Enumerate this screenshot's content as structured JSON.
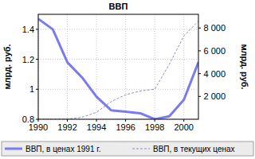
{
  "chart_data": {
    "type": "line",
    "title": "ВВП",
    "y_label": "млрд. руб.",
    "y2_label": "млрд. руб.",
    "x": [
      1990,
      1991,
      1992,
      1993,
      1994,
      1995,
      1996,
      1997,
      1998,
      1999,
      2000,
      2001
    ],
    "xlim": [
      1990,
      2001
    ],
    "xticks": [
      1990,
      1992,
      1994,
      1996,
      1998,
      2000
    ],
    "ylim": [
      0.8,
      1.5
    ],
    "yticks": [
      0.8,
      1,
      1.2,
      1.4
    ],
    "y2lim": [
      0,
      9200
    ],
    "y2ticks": [
      {
        "value": 2000,
        "label": "2 000"
      },
      {
        "value": 4000,
        "label": "4 000"
      },
      {
        "value": 6000,
        "label": "6 000"
      },
      {
        "value": 8000,
        "label": "8 000"
      }
    ],
    "grid": true,
    "legend": "bottom",
    "series": [
      {
        "name": "ВВП, в ценах 1991 г.",
        "color": "#7b7bf0",
        "line_style": "solid",
        "values": [
          1.47,
          1.4,
          1.18,
          1.08,
          0.95,
          0.86,
          0.85,
          0.84,
          0.8,
          0.82,
          0.93,
          1.18
        ]
      },
      {
        "name": "ВВП, в текущих ценах",
        "color": "#8c8cc8",
        "line_style": "dashed",
        "axis": "y2",
        "values": [
          0.6,
          1.4,
          19,
          172,
          611,
          1540,
          2146,
          2479,
          2629,
          4823,
          7306,
          8600
        ]
      }
    ]
  }
}
